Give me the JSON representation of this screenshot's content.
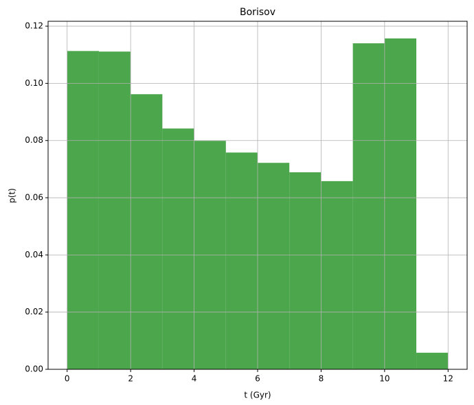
{
  "chart_data": {
    "type": "histogram",
    "title": "Borisov",
    "x_label": "t (Gyr)",
    "y_label": "p(t)",
    "bins": [
      0,
      1,
      2,
      3,
      4,
      5,
      6,
      7,
      8,
      9,
      10,
      11,
      12
    ],
    "values": [
      0.1113,
      0.1111,
      0.0962,
      0.0842,
      0.0799,
      0.0758,
      0.0722,
      0.0689,
      0.0658,
      0.114,
      0.1157,
      0.0058
    ],
    "color": "#4ca64c",
    "xlim": [
      -0.6,
      12.6
    ],
    "xticks": [
      0,
      2,
      4,
      6,
      8,
      10,
      12
    ],
    "ylim": [
      0,
      0.1217
    ],
    "yticks": [
      {
        "value": 0,
        "label": "0.00"
      },
      {
        "value": 0.02,
        "label": "0.02"
      },
      {
        "value": 0.04,
        "label": "0.04"
      },
      {
        "value": 0.06,
        "label": "0.06"
      },
      {
        "value": 0.08,
        "label": "0.08"
      },
      {
        "value": 0.1,
        "label": "0.10"
      },
      {
        "value": 0.12,
        "label": "0.12"
      }
    ],
    "grid": true
  }
}
